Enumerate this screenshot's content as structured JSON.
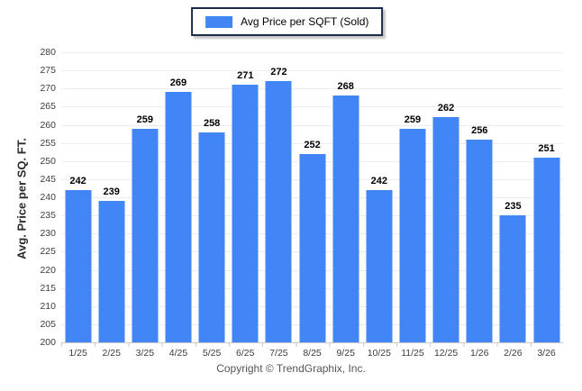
{
  "legend": {
    "label": "Avg Price per SQFT (Sold)",
    "swatch_color": "#4285f4"
  },
  "footer": {
    "copyright": "Copyright © TrendGraphix, Inc."
  },
  "colors": {
    "bar": "#4285f4",
    "gridline": "#ececec",
    "axis_line": "#c9c9c9",
    "tick_label": "#3c3c3c",
    "legend_border": "#1c2b4a"
  },
  "chart_data": {
    "type": "bar",
    "title": "",
    "series_name": "Avg Price per SQFT (Sold)",
    "categories": [
      "1/25",
      "2/25",
      "3/25",
      "4/25",
      "5/25",
      "6/25",
      "7/25",
      "8/25",
      "9/25",
      "10/25",
      "11/25",
      "12/25",
      "1/26",
      "2/26",
      "3/26"
    ],
    "values": [
      242,
      239,
      259,
      269,
      258,
      271,
      272,
      252,
      268,
      242,
      259,
      262,
      256,
      235,
      251
    ],
    "xlabel": "",
    "ylabel": "Avg. Price per SQ. FT.",
    "ylim": [
      200,
      280
    ],
    "ytick_step": 5,
    "grid": "horizontal",
    "legend_position": "top-center",
    "value_labels": true,
    "bar_color": "#4285f4"
  }
}
